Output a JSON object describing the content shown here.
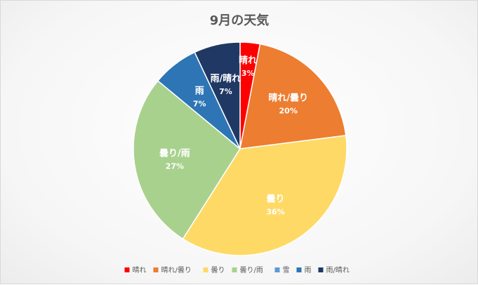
{
  "chart_data": {
    "type": "pie",
    "title": "9月の天気",
    "categories": [
      "晴れ",
      "晴れ/曇り",
      "曇り",
      "曇り/雨",
      "雪",
      "雨",
      "雨/晴れ"
    ],
    "values": [
      3,
      20,
      36,
      27,
      0,
      7,
      7
    ],
    "data_labels": [
      "3%",
      "20%",
      "36%",
      "27%",
      "",
      "7%",
      "7%"
    ],
    "colors": [
      "#ff0000",
      "#ed7d31",
      "#ffd966",
      "#a9d18e",
      "#5b9bd5",
      "#2e75b6",
      "#203864"
    ],
    "legend": {
      "position": "bottom"
    }
  }
}
